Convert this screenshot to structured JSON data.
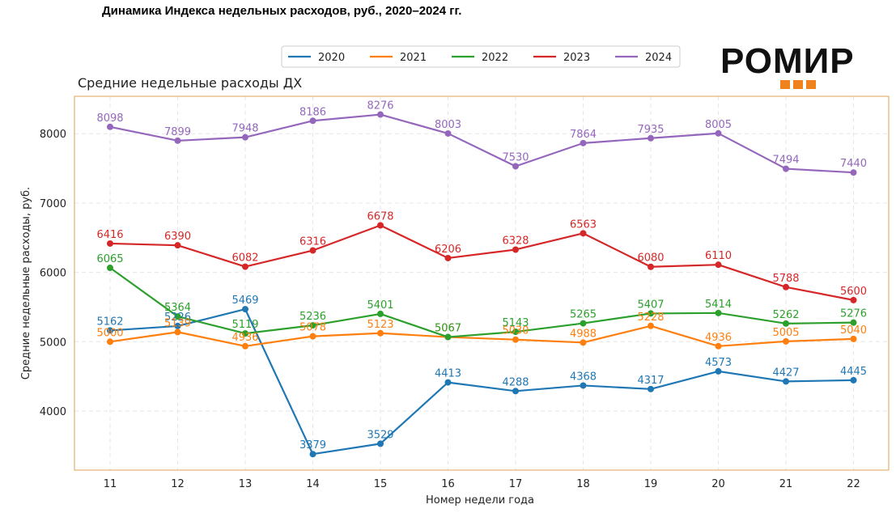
{
  "page_title": "Динамика Индекса недельных расходов, руб., 2020–2024 гг.",
  "logo_text": "РОМИР",
  "chart_data": {
    "type": "line",
    "title": "Средние недельные расходы ДХ",
    "xlabel": "Номер недели года",
    "ylabel": "Средние недельные расходы, руб.",
    "categories": [
      "11",
      "12",
      "13",
      "14",
      "15",
      "16",
      "17",
      "18",
      "19",
      "20",
      "21",
      "22"
    ],
    "ylim": [
      3150,
      8500
    ],
    "yticks": [
      4000,
      5000,
      6000,
      7000,
      8000
    ],
    "grid": true,
    "legend_position": "top",
    "series": [
      {
        "name": "2020",
        "color": "#1f77b4",
        "values": [
          5162,
          5226,
          5469,
          3379,
          3529,
          4413,
          4288,
          4368,
          4317,
          4573,
          4427,
          4445
        ]
      },
      {
        "name": "2021",
        "color": "#ff7f0e",
        "values": [
          5000,
          5139,
          4936,
          5078,
          5123,
          5067,
          5030,
          4988,
          5228,
          4936,
          5005,
          5040
        ]
      },
      {
        "name": "2022",
        "color": "#2ca02c",
        "values": [
          6065,
          5364,
          5119,
          5236,
          5401,
          5067,
          5143,
          5265,
          5407,
          5414,
          5262,
          5276
        ]
      },
      {
        "name": "2023",
        "color": "#d62728",
        "values": [
          6416,
          6390,
          6082,
          6316,
          6678,
          6206,
          6328,
          6563,
          6080,
          6110,
          5788,
          5600
        ]
      },
      {
        "name": "2024",
        "color": "#9467bd",
        "values": [
          8098,
          7899,
          7948,
          8186,
          8276,
          8003,
          7530,
          7864,
          7935,
          8005,
          7494,
          7440
        ]
      }
    ],
    "frame_color": "#e0a050",
    "grid_color": "#e6e6e6"
  }
}
